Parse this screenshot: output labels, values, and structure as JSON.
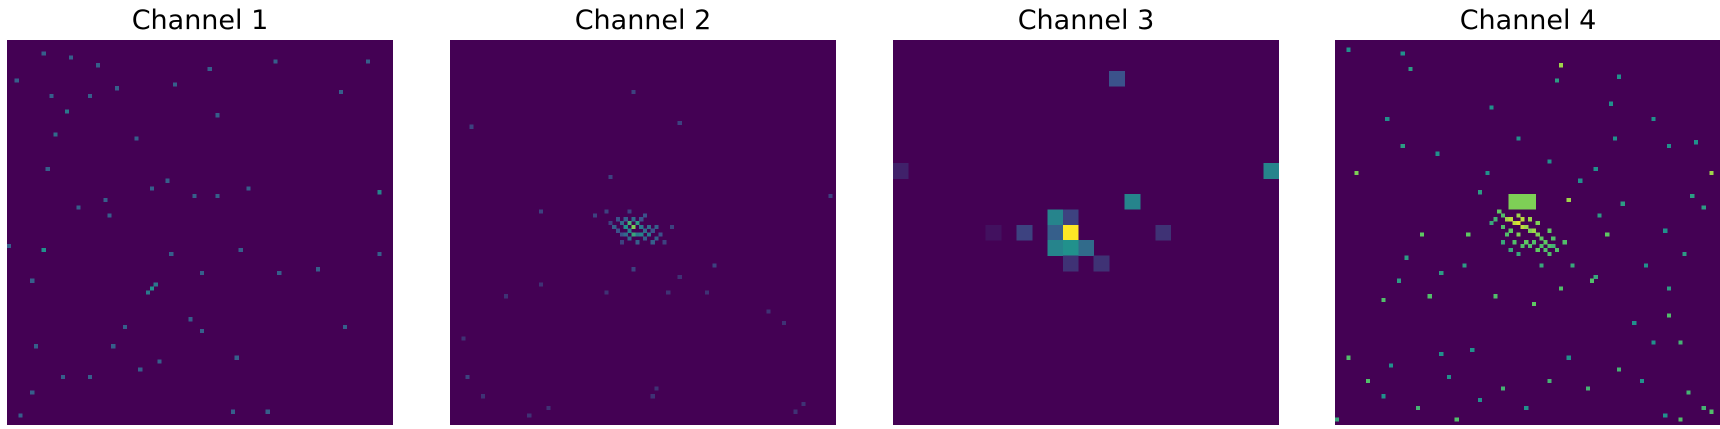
{
  "colormap": [
    "#440154",
    "#3b528b",
    "#21918c",
    "#5ec962",
    "#fde725"
  ],
  "background_color": "#440154",
  "chart_data": [
    {
      "type": "heatmap",
      "title": "Channel 1",
      "grid_size": 100,
      "cells": [
        [
          38,
          63,
          0.4
        ],
        [
          37,
          64,
          0.5
        ],
        [
          36,
          65,
          0.4
        ],
        [
          52,
          7,
          0.3
        ],
        [
          48,
          40,
          0.3
        ],
        [
          9,
          54,
          0.5
        ],
        [
          12,
          24,
          0.35
        ],
        [
          26,
          45,
          0.3
        ],
        [
          37,
          38,
          0.3
        ],
        [
          50,
          60,
          0.3
        ],
        [
          62,
          38,
          0.3
        ],
        [
          47,
          72,
          0.3
        ],
        [
          14,
          87,
          0.3
        ],
        [
          96,
          39,
          0.45
        ],
        [
          15,
          18,
          0.4
        ],
        [
          70,
          60,
          0.3
        ],
        [
          87,
          74,
          0.3
        ],
        [
          3,
          97,
          0.3
        ],
        [
          41,
          36,
          0.3
        ],
        [
          25,
          41,
          0.3
        ],
        [
          7,
          79,
          0.3
        ],
        [
          0,
          53,
          0.3
        ],
        [
          33,
          25,
          0.3
        ],
        [
          86,
          13,
          0.3
        ],
        [
          6,
          62,
          0.3
        ],
        [
          34,
          85,
          0.3
        ],
        [
          59,
          82,
          0.3
        ],
        [
          58,
          96,
          0.3
        ],
        [
          54,
          40,
          0.3
        ],
        [
          96,
          55,
          0.3
        ],
        [
          80,
          59,
          0.3
        ],
        [
          54,
          19,
          0.3
        ],
        [
          50,
          75,
          0.3
        ],
        [
          10,
          33,
          0.3
        ],
        [
          16,
          4,
          0.3
        ],
        [
          27,
          79,
          0.3
        ],
        [
          42,
          55,
          0.3
        ],
        [
          21,
          14,
          0.3
        ],
        [
          30,
          74,
          0.3
        ],
        [
          39,
          83,
          0.3
        ],
        [
          60,
          54,
          0.3
        ],
        [
          21,
          87,
          0.3
        ],
        [
          67,
          96,
          0.3
        ],
        [
          6,
          91,
          0.3
        ],
        [
          18,
          43,
          0.3
        ],
        [
          11,
          14,
          0.3
        ],
        [
          43,
          11,
          0.3
        ],
        [
          9,
          3,
          0.3
        ],
        [
          2,
          10,
          0.3
        ],
        [
          69,
          5,
          0.3
        ],
        [
          28,
          12,
          0.3
        ],
        [
          23,
          6,
          0.3
        ],
        [
          93,
          5,
          0.3
        ]
      ]
    },
    {
      "type": "heatmap",
      "title": "Channel 2",
      "grid_size": 100,
      "cells": [
        [
          43,
          46,
          0.25
        ],
        [
          44,
          47,
          0.35
        ],
        [
          45,
          48,
          0.5
        ],
        [
          46,
          47,
          0.65
        ],
        [
          47,
          48,
          0.8
        ],
        [
          48,
          47,
          0.55
        ],
        [
          49,
          48,
          0.4
        ],
        [
          50,
          49,
          0.35
        ],
        [
          51,
          50,
          0.4
        ],
        [
          52,
          49,
          0.25
        ],
        [
          53,
          51,
          0.3
        ],
        [
          54,
          50,
          0.25
        ],
        [
          42,
          48,
          0.3
        ],
        [
          43,
          49,
          0.25
        ],
        [
          45,
          46,
          0.3
        ],
        [
          46,
          49,
          0.45
        ],
        [
          47,
          46,
          0.35
        ],
        [
          48,
          50,
          0.4
        ],
        [
          49,
          46,
          0.25
        ],
        [
          50,
          51,
          0.3
        ],
        [
          51,
          48,
          0.35
        ],
        [
          52,
          52,
          0.3
        ],
        [
          44,
          50,
          0.25
        ],
        [
          46,
          51,
          0.35
        ],
        [
          48,
          52,
          0.3
        ],
        [
          50,
          45,
          0.25
        ],
        [
          47,
          50,
          0.6
        ],
        [
          49,
          50,
          0.45
        ],
        [
          45,
          50,
          0.35
        ],
        [
          53,
          48,
          0.3
        ],
        [
          40,
          44,
          0.2
        ],
        [
          41,
          47,
          0.2
        ],
        [
          55,
          52,
          0.2
        ],
        [
          37,
          45,
          0.2
        ],
        [
          41,
          35,
          0.2
        ],
        [
          46,
          44,
          0.2
        ],
        [
          57,
          48,
          0.2
        ],
        [
          47,
          59,
          0.2
        ],
        [
          66,
          65,
          0.15
        ],
        [
          40,
          65,
          0.15
        ],
        [
          56,
          65,
          0.15
        ],
        [
          59,
          61,
          0.15
        ],
        [
          23,
          63,
          0.15
        ],
        [
          14,
          66,
          0.15
        ],
        [
          82,
          70,
          0.15
        ],
        [
          86,
          73,
          0.15
        ],
        [
          4,
          87,
          0.2
        ],
        [
          8,
          92,
          0.15
        ],
        [
          20,
          97,
          0.15
        ],
        [
          25,
          95,
          0.15
        ],
        [
          53,
          90,
          0.15
        ],
        [
          52,
          92,
          0.15
        ],
        [
          89,
          96,
          0.15
        ],
        [
          91,
          94,
          0.15
        ],
        [
          3,
          77,
          0.15
        ],
        [
          59,
          21,
          0.2
        ],
        [
          98,
          40,
          0.2
        ],
        [
          47,
          13,
          0.2
        ],
        [
          5,
          22,
          0.2
        ],
        [
          68,
          58,
          0.2
        ],
        [
          23,
          44,
          0.2
        ],
        [
          44,
          52,
          0.2
        ]
      ]
    },
    {
      "type": "heatmap",
      "title": "Channel 3",
      "grid_size": 25,
      "cells": [
        [
          11,
          12,
          1.0
        ],
        [
          11,
          13,
          0.5
        ],
        [
          10,
          11,
          0.45
        ],
        [
          10,
          12,
          0.3
        ],
        [
          10,
          13,
          0.45
        ],
        [
          11,
          11,
          0.2
        ],
        [
          12,
          13,
          0.35
        ],
        [
          11,
          14,
          0.15
        ],
        [
          13,
          14,
          0.15
        ],
        [
          14,
          2,
          0.25
        ],
        [
          0,
          8,
          0.1
        ],
        [
          24,
          8,
          0.45
        ],
        [
          15,
          10,
          0.45
        ],
        [
          17,
          12,
          0.15
        ],
        [
          8,
          12,
          0.2
        ],
        [
          6,
          12,
          0.05
        ]
      ]
    },
    {
      "type": "heatmap",
      "title": "Channel 4",
      "grid_size": 100,
      "cells": [
        [
          45,
          40,
          0.8
        ],
        [
          46,
          40,
          0.8
        ],
        [
          47,
          40,
          0.8
        ],
        [
          48,
          40,
          0.8
        ],
        [
          49,
          40,
          0.8
        ],
        [
          50,
          40,
          0.8
        ],
        [
          51,
          40,
          0.8
        ],
        [
          45,
          41,
          0.8
        ],
        [
          46,
          41,
          0.8
        ],
        [
          47,
          41,
          0.8
        ],
        [
          48,
          41,
          0.8
        ],
        [
          49,
          41,
          0.8
        ],
        [
          50,
          41,
          0.8
        ],
        [
          51,
          41,
          0.8
        ],
        [
          45,
          42,
          0.8
        ],
        [
          46,
          42,
          0.8
        ],
        [
          47,
          42,
          0.8
        ],
        [
          48,
          42,
          0.8
        ],
        [
          49,
          42,
          0.8
        ],
        [
          50,
          42,
          0.8
        ],
        [
          51,
          42,
          0.8
        ],
        [
          45,
          43,
          0.8
        ],
        [
          46,
          43,
          0.8
        ],
        [
          47,
          43,
          0.8
        ],
        [
          48,
          43,
          0.8
        ],
        [
          49,
          43,
          0.8
        ],
        [
          50,
          43,
          0.8
        ],
        [
          51,
          43,
          0.8
        ],
        [
          42,
          44,
          0.75
        ],
        [
          43,
          45,
          0.7
        ],
        [
          44,
          46,
          0.85
        ],
        [
          45,
          46,
          0.9
        ],
        [
          46,
          47,
          0.9
        ],
        [
          47,
          47,
          0.95
        ],
        [
          48,
          48,
          0.9
        ],
        [
          49,
          48,
          0.85
        ],
        [
          50,
          49,
          0.8
        ],
        [
          51,
          49,
          0.85
        ],
        [
          52,
          50,
          0.8
        ],
        [
          53,
          51,
          0.75
        ],
        [
          54,
          52,
          0.75
        ],
        [
          55,
          53,
          0.7
        ],
        [
          43,
          48,
          0.7
        ],
        [
          45,
          49,
          0.75
        ],
        [
          47,
          50,
          0.8
        ],
        [
          49,
          52,
          0.75
        ],
        [
          51,
          52,
          0.7
        ],
        [
          53,
          53,
          0.7
        ],
        [
          44,
          50,
          0.7
        ],
        [
          46,
          52,
          0.7
        ],
        [
          48,
          53,
          0.7
        ],
        [
          50,
          53,
          0.7
        ],
        [
          52,
          54,
          0.75
        ],
        [
          54,
          54,
          0.7
        ],
        [
          55,
          55,
          0.7
        ],
        [
          56,
          53,
          0.65
        ],
        [
          57,
          54,
          0.7
        ],
        [
          47,
          45,
          0.85
        ],
        [
          48,
          46,
          0.9
        ],
        [
          50,
          46,
          0.85
        ],
        [
          52,
          47,
          0.8
        ],
        [
          55,
          49,
          0.75
        ],
        [
          56,
          51,
          0.7
        ],
        [
          41,
          46,
          0.65
        ],
        [
          40,
          47,
          0.6
        ],
        [
          43,
          52,
          0.6
        ],
        [
          45,
          54,
          0.6
        ],
        [
          59,
          52,
          0.7
        ],
        [
          22,
          50,
          0.75
        ],
        [
          34,
          50,
          0.75
        ],
        [
          60,
          41,
          0.85
        ],
        [
          70,
          50,
          0.75
        ],
        [
          5,
          34,
          0.8
        ],
        [
          97,
          34,
          0.85
        ],
        [
          58,
          6,
          0.85
        ],
        [
          41,
          66,
          0.7
        ],
        [
          51,
          68,
          0.75
        ],
        [
          58,
          64,
          0.7
        ],
        [
          66,
          62,
          0.7
        ],
        [
          12,
          67,
          0.7
        ],
        [
          24,
          66,
          0.7
        ],
        [
          3,
          82,
          0.7
        ],
        [
          8,
          88,
          0.7
        ],
        [
          21,
          95,
          0.65
        ],
        [
          31,
          98,
          0.7
        ],
        [
          43,
          90,
          0.65
        ],
        [
          55,
          88,
          0.65
        ],
        [
          65,
          90,
          0.65
        ],
        [
          73,
          85,
          0.65
        ],
        [
          86,
          71,
          0.7
        ],
        [
          89,
          78,
          0.65
        ],
        [
          91,
          91,
          0.65
        ],
        [
          95,
          95,
          0.65
        ],
        [
          97,
          96,
          0.7
        ],
        [
          89,
          98,
          0.7
        ],
        [
          47,
          55,
          0.6
        ],
        [
          53,
          58,
          0.6
        ],
        [
          61,
          58,
          0.6
        ],
        [
          67,
          61,
          0.6
        ],
        [
          33,
          58,
          0.55
        ],
        [
          27,
          60,
          0.55
        ],
        [
          16,
          62,
          0.55
        ],
        [
          18,
          56,
          0.55
        ],
        [
          86,
          64,
          0.55
        ],
        [
          90,
          55,
          0.55
        ],
        [
          95,
          43,
          0.55
        ],
        [
          92,
          40,
          0.55
        ],
        [
          74,
          42,
          0.55
        ],
        [
          68,
          45,
          0.55
        ],
        [
          37,
          39,
          0.55
        ],
        [
          39,
          34,
          0.5
        ],
        [
          17,
          27,
          0.55
        ],
        [
          19,
          7,
          0.55
        ],
        [
          26,
          29,
          0.5
        ],
        [
          40,
          17,
          0.5
        ],
        [
          57,
          10,
          0.55
        ],
        [
          73,
          9,
          0.5
        ],
        [
          82,
          20,
          0.5
        ],
        [
          86,
          27,
          0.5
        ],
        [
          93,
          26,
          0.5
        ],
        [
          72,
          25,
          0.5
        ],
        [
          71,
          16,
          0.5
        ],
        [
          13,
          20,
          0.5
        ],
        [
          3,
          2,
          0.5
        ],
        [
          17,
          3,
          0.5
        ],
        [
          47,
          25,
          0.5
        ],
        [
          55,
          31,
          0.5
        ],
        [
          63,
          36,
          0.5
        ],
        [
          67,
          33,
          0.5
        ],
        [
          80,
          58,
          0.5
        ],
        [
          85,
          49,
          0.5
        ],
        [
          35,
          80,
          0.5
        ],
        [
          27,
          81,
          0.5
        ],
        [
          14,
          84,
          0.5
        ],
        [
          12,
          92,
          0.5
        ],
        [
          0,
          98,
          0.6
        ],
        [
          29,
          87,
          0.5
        ],
        [
          37,
          93,
          0.5
        ],
        [
          49,
          95,
          0.5
        ],
        [
          60,
          82,
          0.5
        ],
        [
          77,
          73,
          0.5
        ],
        [
          82,
          78,
          0.5
        ],
        [
          79,
          88,
          0.5
        ],
        [
          85,
          97,
          0.5
        ]
      ]
    }
  ]
}
